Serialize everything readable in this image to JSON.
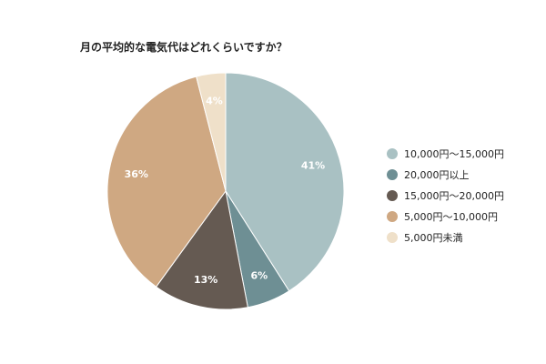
{
  "chart_data": {
    "type": "pie",
    "title": "月の平均的な電気代はどれくらいですか？",
    "categories": [
      "10,000円～15,000円",
      "20,000円以上",
      "15,000円～20,000円",
      "5,000円～10,000円",
      "5,000円未満"
    ],
    "values": [
      41,
      6,
      13,
      36,
      4
    ],
    "value_labels": [
      "41%",
      "6%",
      "13%",
      "36%",
      "4%"
    ],
    "colors": [
      "#a9c1c3",
      "#6e8f94",
      "#655a52",
      "#cfa882",
      "#efe0c9"
    ],
    "legend_position": "right",
    "start_angle": "top, clockwise"
  }
}
